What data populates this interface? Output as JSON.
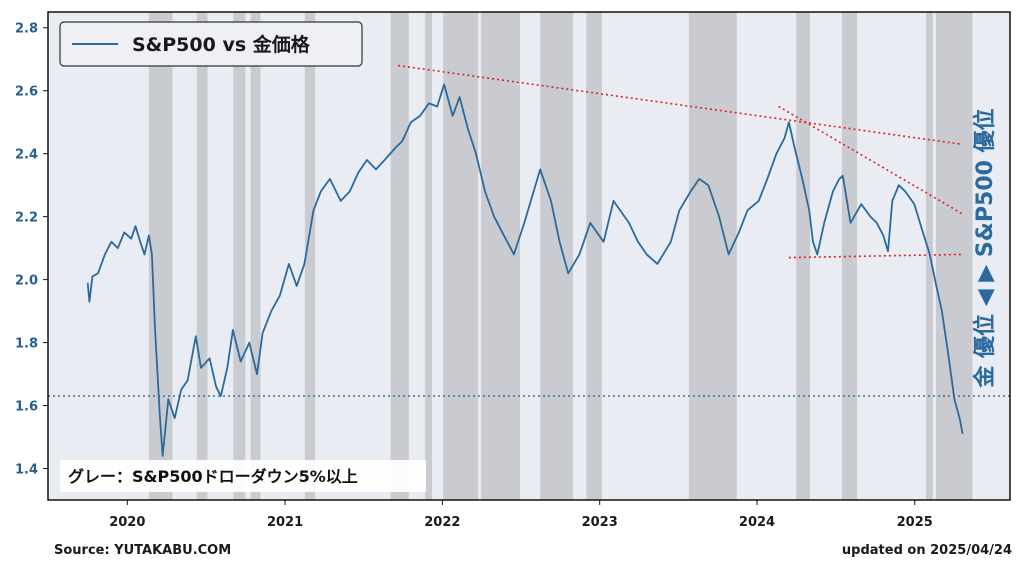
{
  "chart_data": {
    "type": "line",
    "series": [
      {
        "name": "S&P500 vs 金価格",
        "color": "#2b6a9b",
        "points": [
          [
            "2019-10-01",
            1.99
          ],
          [
            "2019-10-05",
            1.93
          ],
          [
            "2019-10-12",
            2.01
          ],
          [
            "2019-10-25",
            2.02
          ],
          [
            "2019-11-10",
            2.08
          ],
          [
            "2019-11-25",
            2.12
          ],
          [
            "2019-12-10",
            2.1
          ],
          [
            "2019-12-25",
            2.15
          ],
          [
            "2020-01-10",
            2.13
          ],
          [
            "2020-01-20",
            2.17
          ],
          [
            "2020-01-31",
            2.12
          ],
          [
            "2020-02-10",
            2.08
          ],
          [
            "2020-02-20",
            2.14
          ],
          [
            "2020-02-27",
            2.08
          ],
          [
            "2020-03-05",
            1.85
          ],
          [
            "2020-03-12",
            1.68
          ],
          [
            "2020-03-16",
            1.58
          ],
          [
            "2020-03-23",
            1.44
          ],
          [
            "2020-04-05",
            1.62
          ],
          [
            "2020-04-20",
            1.56
          ],
          [
            "2020-05-05",
            1.65
          ],
          [
            "2020-05-20",
            1.68
          ],
          [
            "2020-06-08",
            1.82
          ],
          [
            "2020-06-20",
            1.72
          ],
          [
            "2020-07-10",
            1.75
          ],
          [
            "2020-07-25",
            1.66
          ],
          [
            "2020-08-05",
            1.63
          ],
          [
            "2020-08-20",
            1.72
          ],
          [
            "2020-09-02",
            1.84
          ],
          [
            "2020-09-20",
            1.74
          ],
          [
            "2020-10-10",
            1.8
          ],
          [
            "2020-10-28",
            1.7
          ],
          [
            "2020-11-10",
            1.83
          ],
          [
            "2020-11-30",
            1.9
          ],
          [
            "2020-12-20",
            1.95
          ],
          [
            "2021-01-10",
            2.05
          ],
          [
            "2021-01-28",
            1.98
          ],
          [
            "2021-02-15",
            2.05
          ],
          [
            "2021-03-08",
            2.22
          ],
          [
            "2021-03-25",
            2.28
          ],
          [
            "2021-04-15",
            2.32
          ],
          [
            "2021-05-10",
            2.25
          ],
          [
            "2021-05-31",
            2.28
          ],
          [
            "2021-06-20",
            2.34
          ],
          [
            "2021-07-10",
            2.38
          ],
          [
            "2021-07-31",
            2.35
          ],
          [
            "2021-08-20",
            2.38
          ],
          [
            "2021-09-15",
            2.42
          ],
          [
            "2021-09-30",
            2.44
          ],
          [
            "2021-10-20",
            2.5
          ],
          [
            "2021-11-10",
            2.52
          ],
          [
            "2021-12-01",
            2.56
          ],
          [
            "2021-12-20",
            2.55
          ],
          [
            "2022-01-05",
            2.62
          ],
          [
            "2022-01-25",
            2.52
          ],
          [
            "2022-02-10",
            2.58
          ],
          [
            "2022-03-01",
            2.48
          ],
          [
            "2022-03-20",
            2.4
          ],
          [
            "2022-04-10",
            2.28
          ],
          [
            "2022-05-01",
            2.2
          ],
          [
            "2022-05-20",
            2.15
          ],
          [
            "2022-06-16",
            2.08
          ],
          [
            "2022-07-10",
            2.18
          ],
          [
            "2022-08-16",
            2.35
          ],
          [
            "2022-09-10",
            2.25
          ],
          [
            "2022-09-30",
            2.12
          ],
          [
            "2022-10-20",
            2.02
          ],
          [
            "2022-11-15",
            2.08
          ],
          [
            "2022-12-10",
            2.18
          ],
          [
            "2023-01-10",
            2.12
          ],
          [
            "2023-02-02",
            2.25
          ],
          [
            "2023-03-10",
            2.18
          ],
          [
            "2023-03-31",
            2.12
          ],
          [
            "2023-04-20",
            2.08
          ],
          [
            "2023-05-15",
            2.05
          ],
          [
            "2023-06-15",
            2.12
          ],
          [
            "2023-07-05",
            2.22
          ],
          [
            "2023-07-31",
            2.28
          ],
          [
            "2023-08-20",
            2.32
          ],
          [
            "2023-09-10",
            2.3
          ],
          [
            "2023-10-05",
            2.2
          ],
          [
            "2023-10-27",
            2.08
          ],
          [
            "2023-11-20",
            2.15
          ],
          [
            "2023-12-10",
            2.22
          ],
          [
            "2024-01-05",
            2.25
          ],
          [
            "2024-01-25",
            2.32
          ],
          [
            "2024-02-15",
            2.4
          ],
          [
            "2024-03-05",
            2.45
          ],
          [
            "2024-03-15",
            2.5
          ],
          [
            "2024-03-28",
            2.42
          ],
          [
            "2024-04-15",
            2.32
          ],
          [
            "2024-05-01",
            2.22
          ],
          [
            "2024-05-10",
            2.12
          ],
          [
            "2024-05-20",
            2.08
          ],
          [
            "2024-06-05",
            2.18
          ],
          [
            "2024-06-25",
            2.28
          ],
          [
            "2024-07-10",
            2.32
          ],
          [
            "2024-07-18",
            2.33
          ],
          [
            "2024-08-05",
            2.18
          ],
          [
            "2024-08-30",
            2.24
          ],
          [
            "2024-09-20",
            2.2
          ],
          [
            "2024-10-05",
            2.18
          ],
          [
            "2024-10-20",
            2.14
          ],
          [
            "2024-10-31",
            2.09
          ],
          [
            "2024-11-10",
            2.25
          ],
          [
            "2024-11-25",
            2.3
          ],
          [
            "2024-12-10",
            2.28
          ],
          [
            "2024-12-31",
            2.24
          ],
          [
            "2025-01-20",
            2.15
          ],
          [
            "2025-02-05",
            2.08
          ],
          [
            "2025-02-20",
            1.98
          ],
          [
            "2025-03-05",
            1.9
          ],
          [
            "2025-03-20",
            1.76
          ],
          [
            "2025-04-03",
            1.62
          ],
          [
            "2025-04-15",
            1.56
          ],
          [
            "2025-04-22",
            1.51
          ]
        ]
      }
    ],
    "drawdown_periods": [
      [
        "2020-02-20",
        "2020-04-15"
      ],
      [
        "2020-06-10",
        "2020-07-05"
      ],
      [
        "2020-09-03",
        "2020-10-01"
      ],
      [
        "2020-10-13",
        "2020-11-05"
      ],
      [
        "2021-02-16",
        "2021-03-12"
      ],
      [
        "2021-09-03",
        "2021-10-15"
      ],
      [
        "2021-11-22",
        "2021-12-08"
      ],
      [
        "2022-01-03",
        "2022-03-25"
      ],
      [
        "2022-04-01",
        "2022-06-30"
      ],
      [
        "2022-08-16",
        "2022-10-31"
      ],
      [
        "2022-12-01",
        "2023-01-06"
      ],
      [
        "2023-07-27",
        "2023-11-15"
      ],
      [
        "2024-04-01",
        "2024-05-03"
      ],
      [
        "2024-07-16",
        "2024-08-20"
      ],
      [
        "2025-01-27",
        "2025-02-12"
      ],
      [
        "2025-02-19",
        "2025-05-15"
      ]
    ],
    "trend_lines": [
      {
        "from": [
          "2021-09-20",
          2.68
        ],
        "to": [
          "2025-04-20",
          2.43
        ],
        "color": "#e02020"
      },
      {
        "from": [
          "2024-02-20",
          2.55
        ],
        "to": [
          "2025-04-20",
          2.21
        ],
        "color": "#e02020"
      },
      {
        "from": [
          "2024-03-15",
          2.07
        ],
        "to": [
          "2025-04-20",
          2.08
        ],
        "color": "#e02020"
      }
    ],
    "reference_line": {
      "y": 1.63,
      "color": "#2b6a9b"
    },
    "xlim": [
      "2019-07-01",
      "2025-08-10"
    ],
    "ylim": [
      1.3,
      2.85
    ],
    "yticks": [
      "1.4",
      "1.6",
      "1.8",
      "2.0",
      "2.2",
      "2.4",
      "2.6",
      "2.8"
    ],
    "xticks": [
      "2020",
      "2021",
      "2022",
      "2023",
      "2024",
      "2025"
    ],
    "legend_label": "S&P500 vs 金価格",
    "note": "グレー：S&P500ドローダウン5%以上",
    "right_axis_annotation": "金 優位 ◀ ▶ S&P500 優位",
    "source": "Source: YUTAKABU.COM",
    "updated": "updated on 2025/04/24",
    "colors": {
      "plot_background": "#eaecf4",
      "drawdown_band": "#c9cbd1",
      "line": "#2b6a9b",
      "trend": "#e02020"
    }
  }
}
